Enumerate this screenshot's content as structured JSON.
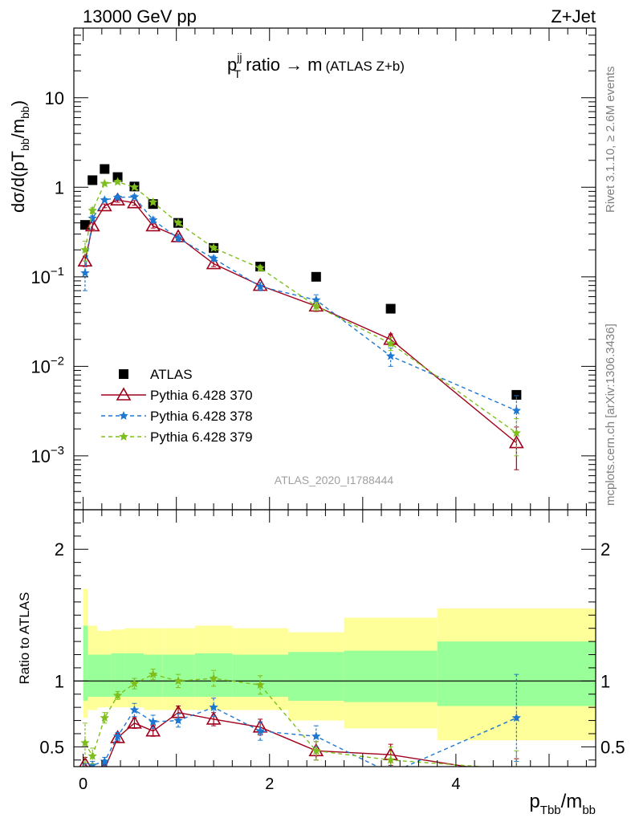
{
  "header": {
    "left": "13000 GeV pp",
    "right": "Z+Jet"
  },
  "plot_title": {
    "main": "p",
    "sup": "jj",
    "sub": "T",
    "rest": " ratio → m",
    "small": "(ATLAS Z+b)"
  },
  "side_labels": {
    "rivet": "Rivet 3.1.10, ≥ 2.6M events",
    "mcplots": "mcplots.cern.ch [arXiv:1306.3436]"
  },
  "watermark": "ATLAS_2020_I1788444",
  "upper_ylabel": {
    "pre": "dσ/d(pT",
    "sub1": "bb",
    "mid": "/m",
    "sub2": "bb",
    "post": ")"
  },
  "lower_ylabel": "Ratio to ATLAS",
  "xlabel": {
    "p": "p",
    "sub1": "Tbb",
    "slash": "/m",
    "sub2": "bb"
  },
  "legend": [
    {
      "label": "ATLAS",
      "color": "#000000",
      "marker": "square",
      "line": "none"
    },
    {
      "label": "Pythia 6.428 370",
      "color": "#a0001c",
      "marker": "triangle-open",
      "line": "solid"
    },
    {
      "label": "Pythia 6.428 378",
      "color": "#1e78d2",
      "marker": "star",
      "line": "dashed"
    },
    {
      "label": "Pythia 6.428 379",
      "color": "#7fbe1e",
      "marker": "star",
      "line": "dashed"
    }
  ],
  "chart_data": [
    {
      "type": "scatter",
      "panel": "main",
      "yscale": "log",
      "xlim": [
        -0.1,
        5.5
      ],
      "ylim": [
        0.00025,
        60
      ],
      "x_ticks": [
        0,
        2,
        4
      ],
      "y_ticks": [
        {
          "value": 0.001,
          "base": "10",
          "exp": "−3"
        },
        {
          "value": 0.01,
          "base": "10",
          "exp": "−2"
        },
        {
          "value": 0.1,
          "base": "10",
          "exp": "−1"
        },
        {
          "value": 1,
          "base": "1",
          "exp": ""
        },
        {
          "value": 10,
          "base": "10",
          "exp": ""
        }
      ],
      "series": [
        {
          "name": "ATLAS",
          "color": "#000000",
          "x": [
            0.02,
            0.1,
            0.23,
            0.37,
            0.55,
            0.75,
            1.02,
            1.4,
            1.9,
            2.5,
            3.3,
            4.65
          ],
          "y": [
            0.38,
            1.2,
            1.6,
            1.3,
            1.02,
            0.65,
            0.4,
            0.21,
            0.13,
            0.1,
            0.044,
            0.0048
          ]
        },
        {
          "name": "Pythia 6.428 370",
          "color": "#a0001c",
          "x": [
            0.02,
            0.1,
            0.23,
            0.37,
            0.55,
            0.75,
            1.02,
            1.4,
            1.9,
            2.5,
            3.3,
            4.65
          ],
          "y": [
            0.15,
            0.37,
            0.62,
            0.72,
            0.67,
            0.37,
            0.28,
            0.14,
            0.08,
            0.047,
            0.02,
            0.0014
          ],
          "yerr": [
            0.02,
            0.03,
            0.03,
            0.04,
            0.04,
            0.02,
            0.02,
            0.01,
            0.006,
            0.006,
            0.003,
            0.0007
          ]
        },
        {
          "name": "Pythia 6.428 378",
          "color": "#1e78d2",
          "x": [
            0.02,
            0.1,
            0.23,
            0.37,
            0.55,
            0.75,
            1.02,
            1.4,
            1.9,
            2.5,
            3.3,
            4.65
          ],
          "y": [
            0.11,
            0.45,
            0.72,
            0.77,
            0.78,
            0.43,
            0.27,
            0.16,
            0.078,
            0.055,
            0.013,
            0.0032
          ],
          "yerr": [
            0.04,
            0.03,
            0.03,
            0.04,
            0.04,
            0.03,
            0.02,
            0.01,
            0.008,
            0.008,
            0.003,
            0.0015
          ]
        },
        {
          "name": "Pythia 6.428 379",
          "color": "#7fbe1e",
          "x": [
            0.02,
            0.1,
            0.23,
            0.37,
            0.55,
            0.75,
            1.02,
            1.4,
            1.9,
            2.5,
            3.3,
            4.65
          ],
          "y": [
            0.2,
            0.55,
            1.1,
            1.15,
            1.0,
            0.68,
            0.4,
            0.21,
            0.125,
            0.047,
            0.018,
            0.0018
          ],
          "yerr": [
            0.05,
            0.04,
            0.04,
            0.05,
            0.04,
            0.03,
            0.02,
            0.01,
            0.008,
            0.005,
            0.003,
            0.0008
          ]
        }
      ]
    },
    {
      "type": "scatter",
      "panel": "ratio",
      "ylabel": "Ratio to ATLAS",
      "xlim": [
        -0.1,
        5.5
      ],
      "ylim": [
        0.35,
        2.3
      ],
      "x_ticks": [
        0,
        2,
        4
      ],
      "y_ticks": [
        0.5,
        1,
        2
      ],
      "bands": {
        "edges": [
          0.0,
          0.05,
          0.15,
          0.3,
          0.45,
          0.65,
          0.85,
          1.2,
          1.6,
          2.2,
          2.8,
          3.8,
          5.5
        ],
        "yellow": [
          [
            0.72,
            1.7
          ],
          [
            0.78,
            1.42
          ],
          [
            0.8,
            1.38
          ],
          [
            0.8,
            1.39
          ],
          [
            0.8,
            1.4
          ],
          [
            0.78,
            1.4
          ],
          [
            0.78,
            1.4
          ],
          [
            0.78,
            1.42
          ],
          [
            0.78,
            1.4
          ],
          [
            0.7,
            1.37
          ],
          [
            0.64,
            1.48
          ],
          [
            0.55,
            1.55
          ]
        ],
        "green": [
          [
            0.85,
            1.42
          ],
          [
            0.88,
            1.2
          ],
          [
            0.88,
            1.2
          ],
          [
            0.88,
            1.21
          ],
          [
            0.88,
            1.21
          ],
          [
            0.88,
            1.2
          ],
          [
            0.88,
            1.2
          ],
          [
            0.88,
            1.21
          ],
          [
            0.88,
            1.2
          ],
          [
            0.85,
            1.22
          ],
          [
            0.84,
            1.23
          ],
          [
            0.81,
            1.3
          ]
        ]
      },
      "series": [
        {
          "name": "Pythia 6.428 370",
          "color": "#a0001c",
          "x": [
            0.02,
            0.1,
            0.23,
            0.37,
            0.55,
            0.75,
            1.02,
            1.4,
            1.9,
            2.5,
            3.3,
            4.65
          ],
          "y": [
            0.37,
            0.31,
            0.33,
            0.57,
            0.68,
            0.62,
            0.76,
            0.71,
            0.65,
            0.47,
            0.44,
            0.29
          ],
          "yerr": [
            0.05,
            0.03,
            0.03,
            0.03,
            0.04,
            0.04,
            0.05,
            0.05,
            0.06,
            0.07,
            0.08,
            0.12
          ]
        },
        {
          "name": "Pythia 6.428 378",
          "color": "#1e78d2",
          "x": [
            0.02,
            0.1,
            0.23,
            0.37,
            0.55,
            0.75,
            1.02,
            1.4,
            1.9,
            2.5,
            3.3,
            4.65
          ],
          "y": [
            0.29,
            0.36,
            0.39,
            0.58,
            0.78,
            0.69,
            0.7,
            0.8,
            0.62,
            0.58,
            0.3,
            0.72
          ],
          "yerr": [
            0.08,
            0.03,
            0.03,
            0.03,
            0.05,
            0.05,
            0.05,
            0.07,
            0.07,
            0.08,
            0.1,
            0.33
          ]
        },
        {
          "name": "Pythia 6.428 379",
          "color": "#7fbe1e",
          "x": [
            0.02,
            0.1,
            0.23,
            0.37,
            0.55,
            0.75,
            1.02,
            1.4,
            1.9,
            2.5,
            3.3,
            4.65
          ],
          "y": [
            0.53,
            0.43,
            0.72,
            0.89,
            0.98,
            1.05,
            1.0,
            1.02,
            0.97,
            0.47,
            0.4,
            0.33
          ],
          "yerr": [
            0.15,
            0.06,
            0.04,
            0.03,
            0.04,
            0.04,
            0.05,
            0.06,
            0.07,
            0.07,
            0.1,
            0.14
          ]
        }
      ]
    }
  ]
}
